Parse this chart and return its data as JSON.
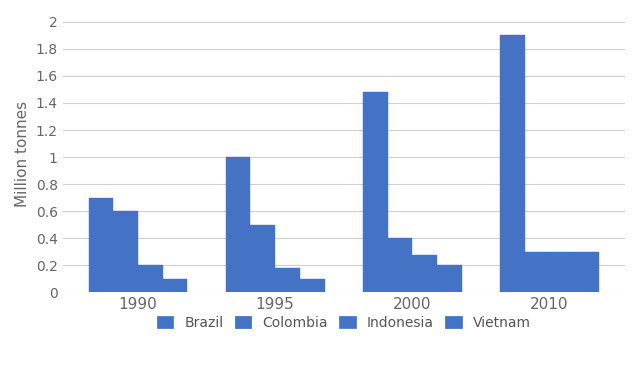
{
  "years": [
    "1990",
    "1995",
    "2000",
    "2010"
  ],
  "countries": [
    "Brazil",
    "Colombia",
    "Indonesia",
    "Vietnam"
  ],
  "values": {
    "Brazil": [
      0.7,
      1.0,
      1.48,
      1.9
    ],
    "Colombia": [
      0.6,
      0.5,
      0.4,
      0.3
    ],
    "Indonesia": [
      0.2,
      0.18,
      0.28,
      0.3
    ],
    "Vietnam": [
      0.1,
      0.1,
      0.2,
      0.3
    ]
  },
  "bar_color": "#4472C4",
  "ylabel": "Million tonnes",
  "ylim": [
    0,
    2.05
  ],
  "yticks": [
    0,
    0.2,
    0.4,
    0.6,
    0.8,
    1.0,
    1.2,
    1.4,
    1.6,
    1.8,
    2.0
  ],
  "background_color": "#ffffff",
  "grid_color": "#d0d0d0",
  "hatch_styles": [
    "",
    "||||||||",
    "=========",
    "...."
  ],
  "group_centers": [
    0,
    1,
    2,
    3
  ],
  "bar_width": 0.18,
  "group_width": 0.85
}
